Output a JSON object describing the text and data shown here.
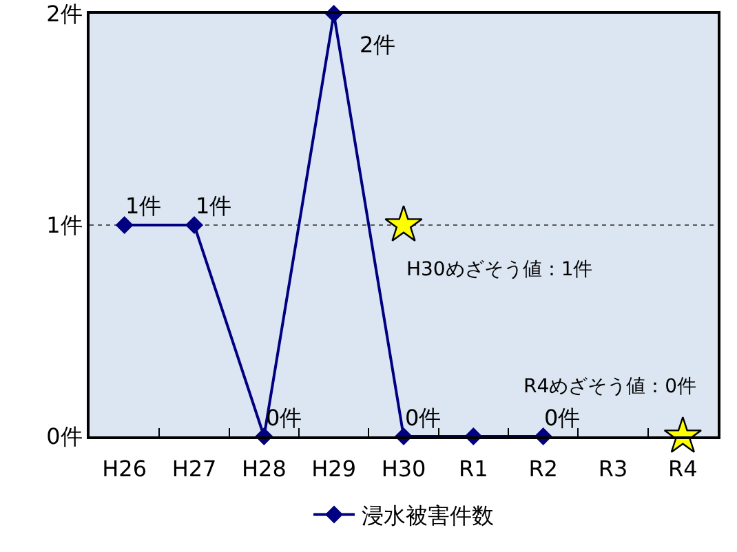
{
  "chart_data": {
    "type": "line",
    "categories": [
      "H26",
      "H27",
      "H28",
      "H29",
      "H30",
      "R1",
      "R2",
      "R3",
      "R4"
    ],
    "series": [
      {
        "name": "浸水被害件数",
        "color": "#000080",
        "marker": "diamond",
        "values": [
          1,
          1,
          0,
          2,
          0,
          0,
          0,
          null,
          null
        ],
        "value_labels": [
          "1件",
          "1件",
          "0件",
          "2件",
          "0件",
          null,
          "0件",
          null,
          null
        ]
      },
      {
        "type": "scatter",
        "color": "#ffff00",
        "marker": "star",
        "x": [
          "H30",
          "R4"
        ],
        "values": [
          1,
          0
        ]
      }
    ],
    "ylim": [
      0,
      2
    ],
    "yticks": [
      {
        "value": 0,
        "label": "0件"
      },
      {
        "value": 1,
        "label": "1件"
      },
      {
        "value": 2,
        "label": "2件"
      }
    ],
    "grid": "y",
    "legend": "bottom",
    "annotations": [
      {
        "text": "H30めざそう値：1件",
        "x": "H30",
        "y": 1
      },
      {
        "text": "R4めざそう値：0件",
        "x": "R4",
        "y": 0
      }
    ]
  }
}
